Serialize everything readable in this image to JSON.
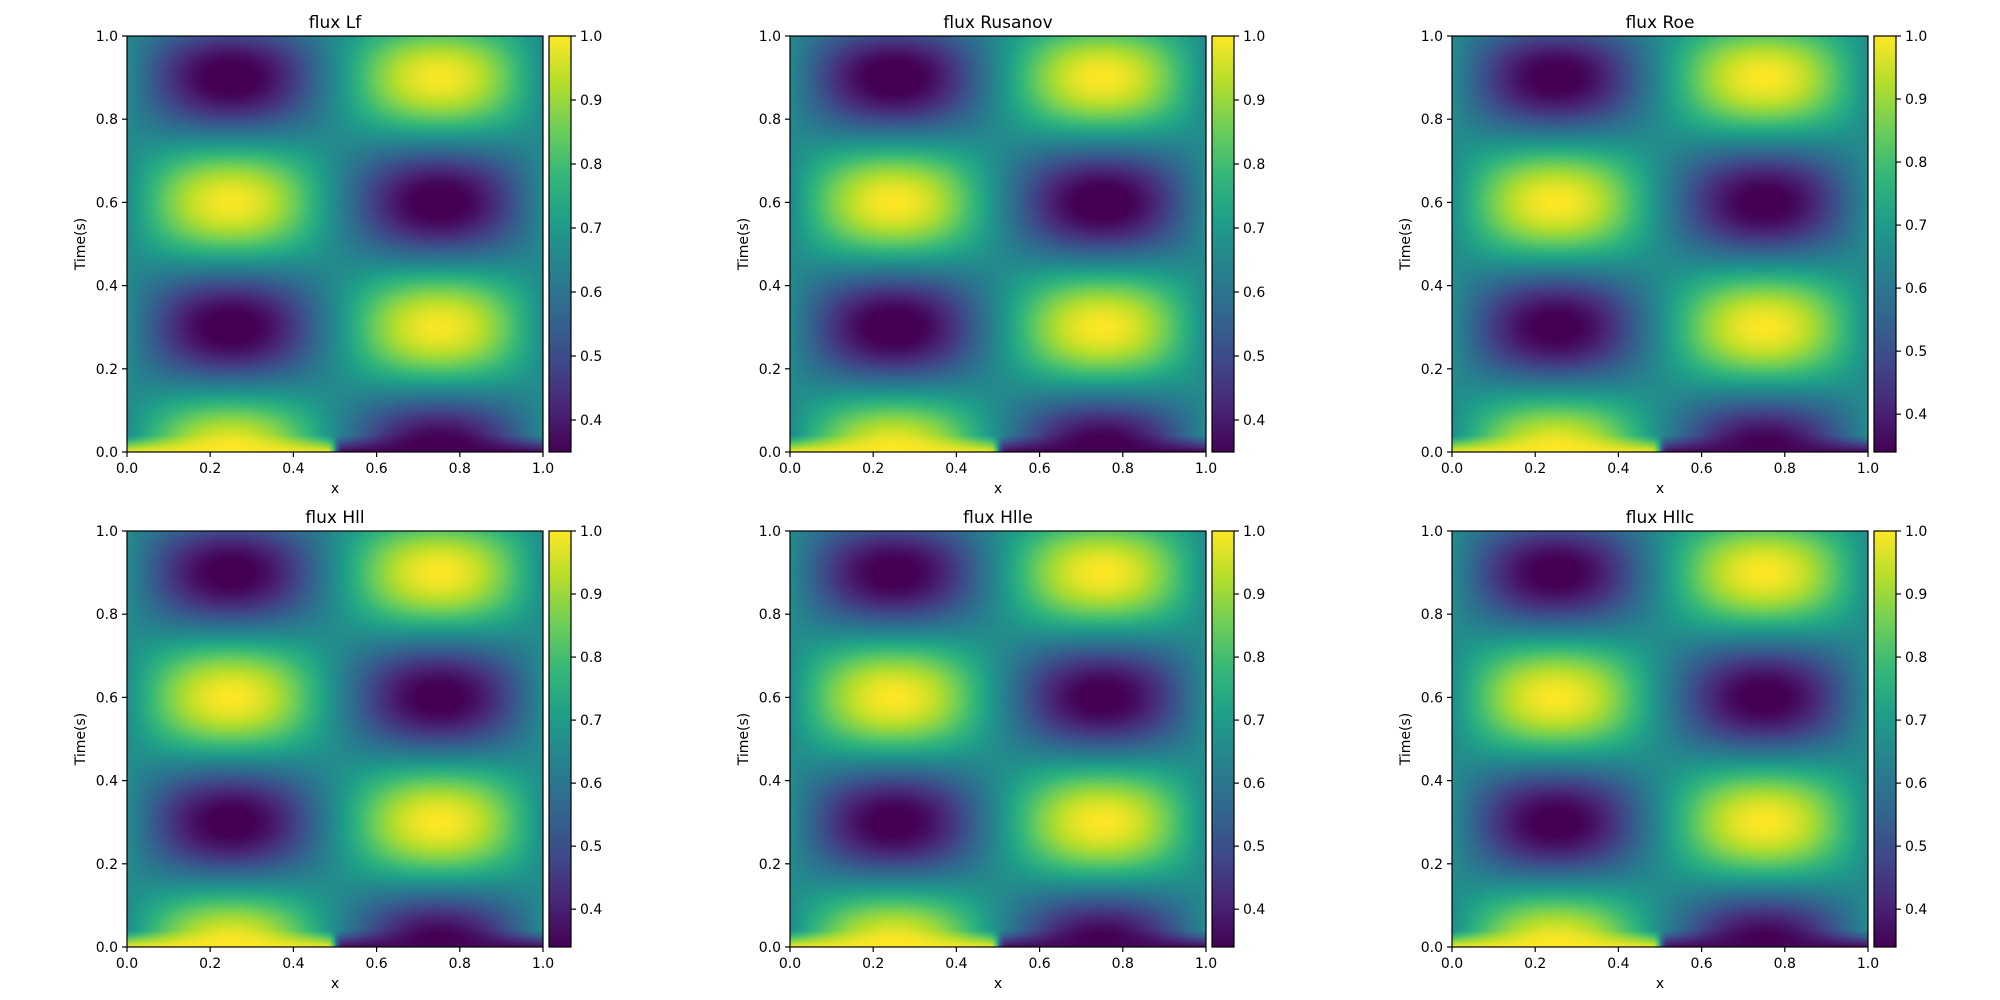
{
  "colormap": "viridis",
  "colors": {
    "viridis": [
      "#440154",
      "#482777",
      "#3e4a89",
      "#31688e",
      "#26828e",
      "#1f9e89",
      "#35b779",
      "#6ece58",
      "#b5de2b",
      "#fde725"
    ]
  },
  "chart_data": [
    {
      "type": "heatmap",
      "title": "flux Lf",
      "xlabel": "x",
      "ylabel": "Time(s)",
      "xlim": [
        0.0,
        1.0
      ],
      "ylim": [
        0.0,
        1.0
      ],
      "x_ticks": [
        "0.0",
        "0.2",
        "0.4",
        "0.6",
        "0.8",
        "1.0"
      ],
      "y_ticks": [
        "0.0",
        "0.2",
        "0.4",
        "0.6",
        "0.8",
        "1.0"
      ],
      "colorbar": {
        "range": [
          0.35,
          1.0
        ],
        "ticks": [
          "0.4",
          "0.5",
          "0.6",
          "0.7",
          "0.8",
          "0.9",
          "1.0"
        ]
      },
      "smoothing": 0.08,
      "z_description": "density field: initial step 1.0 for x<0.5 and 0.35 for x>0.5, reflecting waves forming a diamond pattern"
    },
    {
      "type": "heatmap",
      "title": "flux Rusanov",
      "xlabel": "x",
      "ylabel": "Time(s)",
      "xlim": [
        0.0,
        1.0
      ],
      "ylim": [
        0.0,
        1.0
      ],
      "x_ticks": [
        "0.0",
        "0.2",
        "0.4",
        "0.6",
        "0.8",
        "1.0"
      ],
      "y_ticks": [
        "0.0",
        "0.2",
        "0.4",
        "0.6",
        "0.8",
        "1.0"
      ],
      "colorbar": {
        "range": [
          0.35,
          1.0
        ],
        "ticks": [
          "0.4",
          "0.5",
          "0.6",
          "0.7",
          "0.8",
          "0.9",
          "1.0"
        ]
      },
      "smoothing": 0.035
    },
    {
      "type": "heatmap",
      "title": "flux Roe",
      "xlabel": "x",
      "ylabel": "Time(s)",
      "xlim": [
        0.0,
        1.0
      ],
      "ylim": [
        0.0,
        1.0
      ],
      "x_ticks": [
        "0.0",
        "0.2",
        "0.4",
        "0.6",
        "0.8",
        "1.0"
      ],
      "y_ticks": [
        "0.0",
        "0.2",
        "0.4",
        "0.6",
        "0.8",
        "1.0"
      ],
      "colorbar": {
        "range": [
          0.34,
          1.0
        ],
        "ticks": [
          "0.4",
          "0.5",
          "0.6",
          "0.7",
          "0.8",
          "0.9",
          "1.0"
        ]
      },
      "smoothing": 0.03
    },
    {
      "type": "heatmap",
      "title": "flux Hll",
      "xlabel": "x",
      "ylabel": "Time(s)",
      "xlim": [
        0.0,
        1.0
      ],
      "ylim": [
        0.0,
        1.0
      ],
      "x_ticks": [
        "0.0",
        "0.2",
        "0.4",
        "0.6",
        "0.8",
        "1.0"
      ],
      "y_ticks": [
        "0.0",
        "0.2",
        "0.4",
        "0.6",
        "0.8",
        "1.0"
      ],
      "colorbar": {
        "range": [
          0.34,
          1.0
        ],
        "ticks": [
          "0.4",
          "0.5",
          "0.6",
          "0.7",
          "0.8",
          "0.9",
          "1.0"
        ]
      },
      "smoothing": 0.035
    },
    {
      "type": "heatmap",
      "title": "flux Hlle",
      "xlabel": "x",
      "ylabel": "Time(s)",
      "xlim": [
        0.0,
        1.0
      ],
      "ylim": [
        0.0,
        1.0
      ],
      "x_ticks": [
        "0.0",
        "0.2",
        "0.4",
        "0.6",
        "0.8",
        "1.0"
      ],
      "y_ticks": [
        "0.0",
        "0.2",
        "0.4",
        "0.6",
        "0.8",
        "1.0"
      ],
      "colorbar": {
        "range": [
          0.34,
          1.0
        ],
        "ticks": [
          "0.4",
          "0.5",
          "0.6",
          "0.7",
          "0.8",
          "0.9",
          "1.0"
        ]
      },
      "smoothing": 0.035
    },
    {
      "type": "heatmap",
      "title": "flux Hllc",
      "xlabel": "x",
      "ylabel": "Time(s)",
      "xlim": [
        0.0,
        1.0
      ],
      "ylim": [
        0.0,
        1.0
      ],
      "x_ticks": [
        "0.0",
        "0.2",
        "0.4",
        "0.6",
        "0.8",
        "1.0"
      ],
      "y_ticks": [
        "0.0",
        "0.2",
        "0.4",
        "0.6",
        "0.8",
        "1.0"
      ],
      "colorbar": {
        "range": [
          0.34,
          1.0
        ],
        "ticks": [
          "0.4",
          "0.5",
          "0.6",
          "0.7",
          "0.8",
          "0.9",
          "1.0"
        ]
      },
      "smoothing": 0.03
    }
  ]
}
